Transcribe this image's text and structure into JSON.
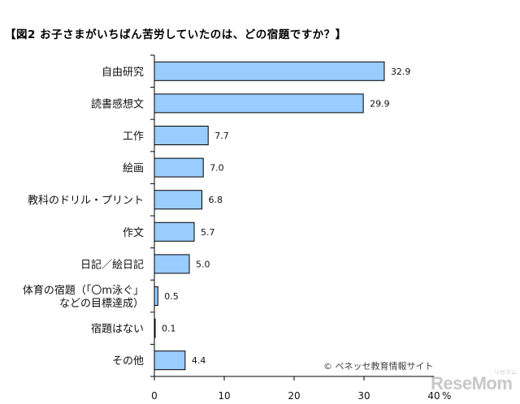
{
  "chart_data": {
    "type": "bar",
    "orientation": "horizontal",
    "title": "【図2 お子さまがいちばん苦労していたのは、どの宿題ですか？】",
    "categories": [
      [
        "自由研究"
      ],
      [
        "読書感想文"
      ],
      [
        "工作"
      ],
      [
        "絵画"
      ],
      [
        "教科のドリル・プリント"
      ],
      [
        "作文"
      ],
      [
        "日記／絵日記"
      ],
      [
        "体育の宿題（「〇m泳ぐ」",
        "などの目標達成）"
      ],
      [
        "宿題はない"
      ],
      [
        "その他"
      ]
    ],
    "values": [
      32.9,
      29.9,
      7.7,
      7.0,
      6.8,
      5.7,
      5.0,
      0.5,
      0.1,
      4.4
    ],
    "value_labels": [
      "32.9",
      "29.9",
      "7.7",
      "7.0",
      "6.8",
      "5.7",
      "5.0",
      "0.5",
      "0.1",
      "4.4"
    ],
    "xlim": [
      0,
      40
    ],
    "xticks": [
      "0",
      "10",
      "20",
      "30",
      "40"
    ],
    "xunit": "%",
    "bar_color": "#99ccff",
    "bar_border": "#000000",
    "grid": false
  },
  "credit": "© ベネッセ教育情報サイト",
  "watermark": {
    "text": "ReseMom",
    "sub": "リセマム"
  }
}
